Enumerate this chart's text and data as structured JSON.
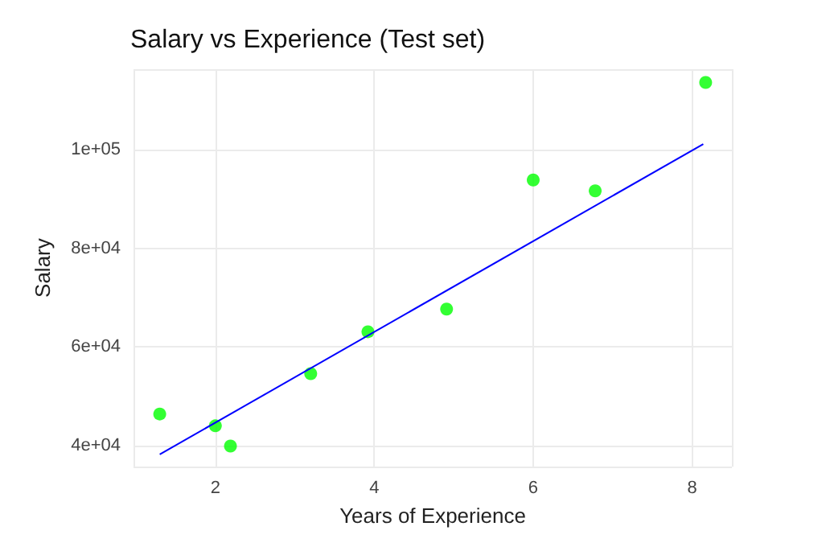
{
  "chart_data": {
    "type": "scatter",
    "title": "Salary vs Experience (Test set)",
    "xlabel": "Years of Experience",
    "ylabel": "Salary",
    "xlim": [
      0.97,
      8.5
    ],
    "xticks": [
      2,
      4,
      6,
      8
    ],
    "ylim": [
      35700,
      116400
    ],
    "yticks": [
      {
        "value": 40000,
        "label": "4e+04"
      },
      {
        "value": 60000,
        "label": "6e+04"
      },
      {
        "value": 80000,
        "label": "8e+04"
      },
      {
        "value": 100000,
        "label": "1e+05"
      }
    ],
    "grid": true,
    "marker": "circle",
    "series": [
      {
        "color": "#00ff00",
        "x": [
          1.3,
          2.0,
          2.19,
          3.2,
          3.92,
          4.91,
          6.0,
          6.78,
          8.17
        ],
        "values": [
          46400,
          44000,
          39900,
          54600,
          63100,
          67700,
          93900,
          91700,
          113700
        ]
      },
      {
        "type": "line",
        "color": "#0000ff",
        "line_style": "solid",
        "marker": "none",
        "x": [
          1.3,
          8.14
        ],
        "values": [
          38200,
          101200
        ]
      }
    ]
  }
}
